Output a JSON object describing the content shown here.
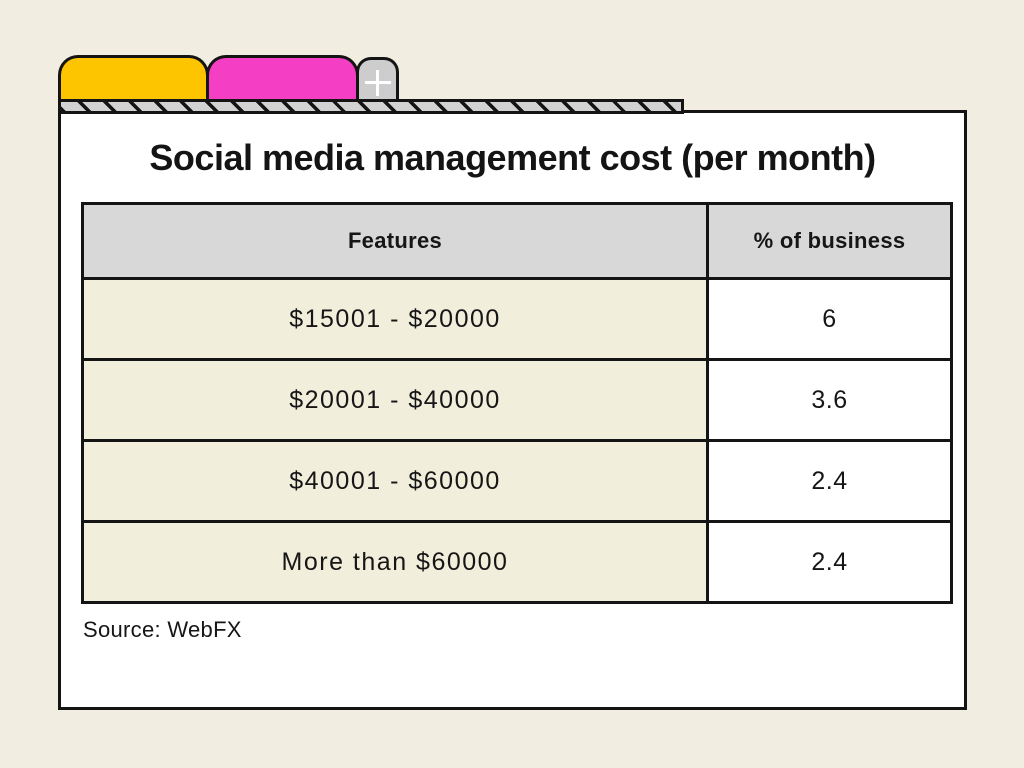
{
  "colors": {
    "background": "#f1eee1",
    "card_background": "#ffffff",
    "outline": "#141414",
    "tab_yellow": "#fdc500",
    "tab_pink": "#f43fc4",
    "tab_gray": "#cdcdcd",
    "hatch_gray": "#d2d2d2",
    "header_gray": "#d8d8d8",
    "row_cream": "#f2eedc"
  },
  "icons": {
    "new_tab": "plus-icon"
  },
  "chart_data": {
    "type": "table",
    "title": "Social media management cost (per month)",
    "columns": [
      "Features",
      "% of business"
    ],
    "categories": [
      "$15001 - $20000",
      "$20001 - $40000",
      "$40001 - $60000",
      "More than $60000"
    ],
    "values": [
      6,
      3.6,
      2.4,
      2.4
    ],
    "rows": [
      {
        "feature": "$15001 - $20000",
        "percent": "6"
      },
      {
        "feature": "$20001 - $40000",
        "percent": "3.6"
      },
      {
        "feature": "$40001 - $60000",
        "percent": "2.4"
      },
      {
        "feature": "More than $60000",
        "percent": "2.4"
      }
    ],
    "source": "Source: WebFX",
    "legend": "off",
    "grid": "off"
  }
}
